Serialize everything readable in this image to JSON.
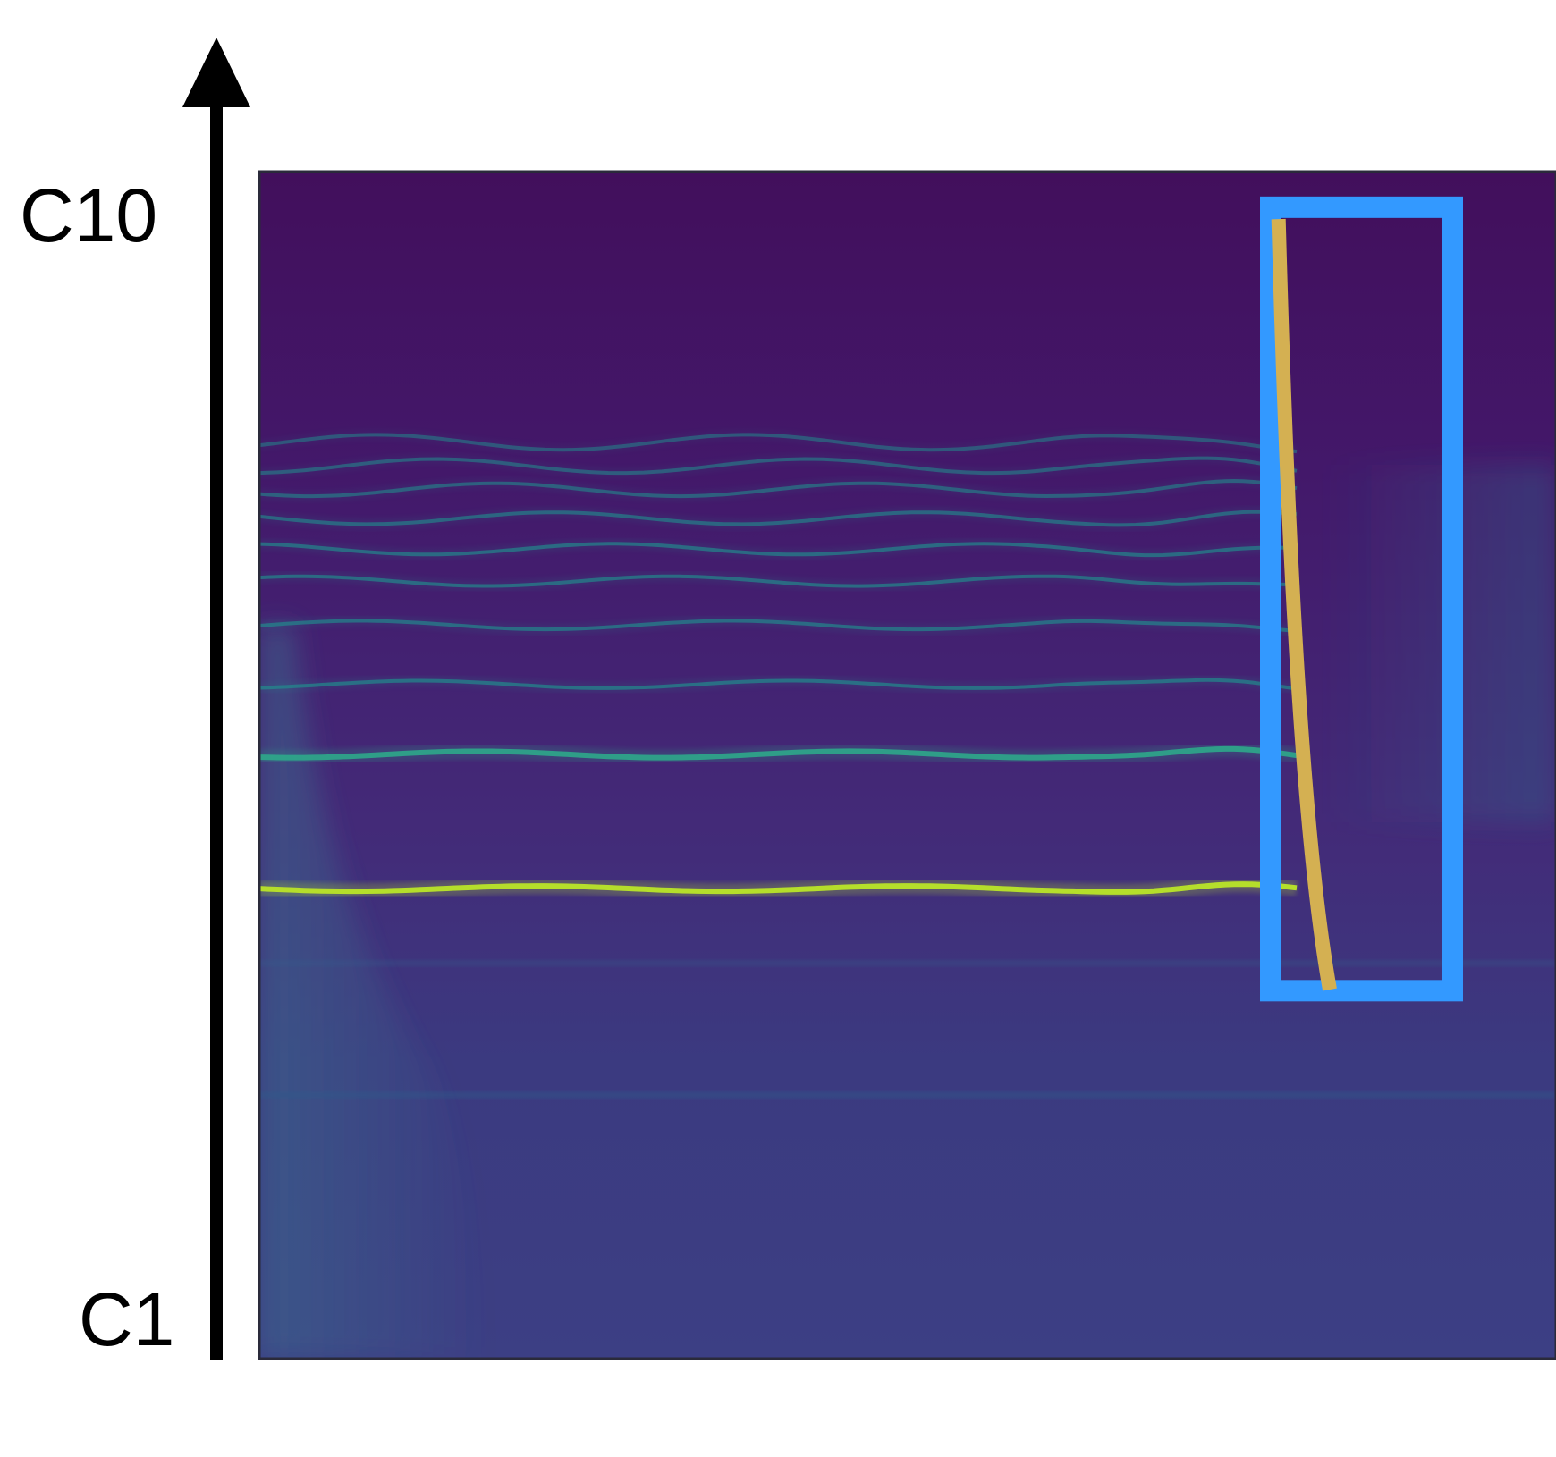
{
  "chart_data": {
    "type": "heatmap",
    "title": "",
    "xlabel": "",
    "ylabel": "",
    "y_axis": {
      "ticks": [
        "C1",
        "C10"
      ],
      "scale": "log",
      "arrow": "up"
    },
    "colormap": "viridis",
    "grid": false,
    "legend": "none",
    "highlights": [
      {
        "shape": "rectangle",
        "color": "#3399ff",
        "x_range_fraction": [
          0.78,
          0.92
        ],
        "y_range_fraction": [
          0.03,
          0.69
        ]
      }
    ],
    "annotations": [
      {
        "shape": "curve",
        "color": "#d4b052",
        "description_points_fraction": [
          [
            0.786,
            0.04
          ],
          [
            0.82,
            0.68
          ]
        ]
      }
    ],
    "harmonic_lines": [
      {
        "level_fraction": 0.604,
        "intensity": 1.0
      },
      {
        "level_fraction": 0.491,
        "intensity": 0.85
      },
      {
        "level_fraction": 0.432,
        "intensity": 0.5
      },
      {
        "level_fraction": 0.382,
        "intensity": 0.45
      },
      {
        "level_fraction": 0.345,
        "intensity": 0.45
      },
      {
        "level_fraction": 0.318,
        "intensity": 0.45
      },
      {
        "level_fraction": 0.292,
        "intensity": 0.4
      },
      {
        "level_fraction": 0.268,
        "intensity": 0.35
      },
      {
        "level_fraction": 0.248,
        "intensity": 0.3
      },
      {
        "level_fraction": 0.228,
        "intensity": 0.25
      }
    ]
  },
  "colors": {
    "background_dark": "#440d57",
    "background_mid": "#3b3f87",
    "line_bright": "#b5de2b",
    "line_green": "#2ea889",
    "line_teal": "#218f8d",
    "highlight_box": "#3399ff",
    "curve": "#d4b052",
    "axis": "#000000"
  }
}
